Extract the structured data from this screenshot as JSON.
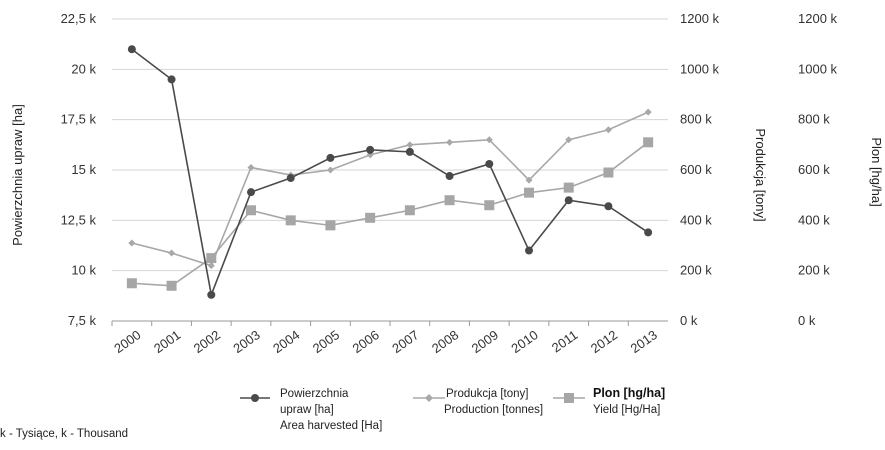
{
  "chart_data": {
    "type": "line",
    "categories": [
      "2000",
      "2001",
      "2002",
      "2003",
      "2004",
      "2005",
      "2006",
      "2007",
      "2008",
      "2009",
      "2010",
      "2011",
      "2012",
      "2013"
    ],
    "y_left": {
      "label": "Powierzchnia upraw [ha]",
      "range": [
        7500,
        22500
      ],
      "ticks": [
        "7,5 k",
        "10 k",
        "12,5 k",
        "15 k",
        "17,5 k",
        "20 k",
        "22,5 k"
      ]
    },
    "y_right1": {
      "label": "Produkcja [tony]",
      "range": [
        0,
        1200000
      ],
      "ticks": [
        "0 k",
        "200 k",
        "400 k",
        "600 k",
        "800 k",
        "1000 k",
        "1200 k"
      ]
    },
    "y_right2": {
      "label": "Plon [hg/ha]",
      "range": [
        0,
        1200000
      ],
      "ticks": [
        "0 k",
        "200 k",
        "400 k",
        "600 k",
        "800 k",
        "1000 k",
        "1200 k"
      ]
    },
    "series": [
      {
        "name": "Powierzchnia upraw [ha]",
        "name_en": "Area harvested [Ha]",
        "axis": "left",
        "marker": "circle",
        "color": "#4a4a4a",
        "values": [
          21000,
          19500,
          8800,
          13900,
          14600,
          15600,
          16000,
          15900,
          14700,
          15300,
          11000,
          13500,
          13200,
          11900
        ]
      },
      {
        "name": "Produkcja [tony]",
        "name_en": "Production [tonnes]",
        "axis": "right1",
        "marker": "diamond",
        "color": "#a8a8a8",
        "values": [
          310000,
          270000,
          220000,
          610000,
          580000,
          600000,
          660000,
          700000,
          710000,
          720000,
          560000,
          720000,
          760000,
          830000
        ]
      },
      {
        "name": "Plon [hg/ha]",
        "name_en": "Yield [Hg/Ha]",
        "axis": "right2",
        "marker": "square",
        "color": "#a6a6a6",
        "values": [
          150000,
          140000,
          250000,
          440000,
          400000,
          380000,
          410000,
          440000,
          480000,
          460000,
          510000,
          530000,
          590000,
          710000
        ]
      }
    ],
    "grid": true,
    "legend_position": "bottom"
  },
  "legend": {
    "s1_line1": "Powierzchnia",
    "s1_line2": "upraw [ha]",
    "s1_line3": "Area harvested [Ha]",
    "s2_line1": "Produkcja [tony]",
    "s2_line2": "Production [tonnes]",
    "s3_line1": "Plon [hg/ha]",
    "s3_line2": "Yield [Hg/Ha]"
  },
  "footnote": "k - Tysiące, k - Thousand"
}
